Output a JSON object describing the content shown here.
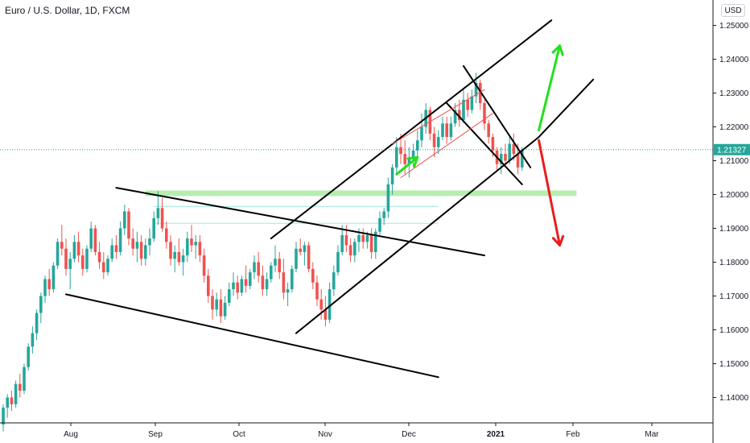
{
  "header": {
    "title": "Euro / U.S. Dollar, 1D, FXCM",
    "currency": "USD"
  },
  "price_tag": "1.21327",
  "colors": {
    "up": "#26a69a",
    "down": "#ef5350",
    "zone": "#a5e89a",
    "line": "#000000",
    "arrow_up": "#22e01a",
    "arrow_down": "#e81d1d",
    "guide": "#5ce0c8"
  },
  "chart_data": {
    "type": "candlestick",
    "x_ticks": [
      "Aug",
      "Sep",
      "Oct",
      "Nov",
      "Dec",
      "2021",
      "Feb",
      "Mar"
    ],
    "y_ticks": [
      "1.25000",
      "1.24000",
      "1.23000",
      "1.22000",
      "1.21000",
      "1.20000",
      "1.19000",
      "1.18000",
      "1.17000",
      "1.16000",
      "1.15000",
      "1.14000"
    ],
    "ylim": [
      1.1325,
      1.2575
    ],
    "last_price": 1.21327,
    "ohlc": [
      [
        1.132,
        1.138,
        1.13,
        1.137
      ],
      [
        1.137,
        1.141,
        1.134,
        1.14
      ],
      [
        1.14,
        1.142,
        1.136,
        1.138
      ],
      [
        1.138,
        1.145,
        1.137,
        1.144
      ],
      [
        1.144,
        1.147,
        1.14,
        1.142
      ],
      [
        1.142,
        1.15,
        1.141,
        1.149
      ],
      [
        1.149,
        1.156,
        1.148,
        1.155
      ],
      [
        1.155,
        1.161,
        1.153,
        1.159
      ],
      [
        1.159,
        1.166,
        1.157,
        1.165
      ],
      [
        1.165,
        1.171,
        1.162,
        1.17
      ],
      [
        1.17,
        1.176,
        1.168,
        1.175
      ],
      [
        1.175,
        1.178,
        1.17,
        1.172
      ],
      [
        1.172,
        1.18,
        1.171,
        1.179
      ],
      [
        1.179,
        1.187,
        1.178,
        1.186
      ],
      [
        1.186,
        1.191,
        1.182,
        1.184
      ],
      [
        1.184,
        1.187,
        1.176,
        1.178
      ],
      [
        1.178,
        1.183,
        1.172,
        1.181
      ],
      [
        1.181,
        1.188,
        1.18,
        1.186
      ],
      [
        1.186,
        1.189,
        1.18,
        1.182
      ],
      [
        1.182,
        1.184,
        1.176,
        1.178
      ],
      [
        1.178,
        1.185,
        1.177,
        1.184
      ],
      [
        1.184,
        1.192,
        1.183,
        1.19
      ],
      [
        1.19,
        1.191,
        1.182,
        1.183
      ],
      [
        1.183,
        1.186,
        1.178,
        1.18
      ],
      [
        1.18,
        1.183,
        1.175,
        1.177
      ],
      [
        1.177,
        1.182,
        1.176,
        1.181
      ],
      [
        1.181,
        1.187,
        1.18,
        1.185
      ],
      [
        1.185,
        1.188,
        1.181,
        1.183
      ],
      [
        1.183,
        1.192,
        1.182,
        1.19
      ],
      [
        1.19,
        1.197,
        1.188,
        1.195
      ],
      [
        1.195,
        1.196,
        1.185,
        1.187
      ],
      [
        1.187,
        1.19,
        1.182,
        1.184
      ],
      [
        1.184,
        1.189,
        1.18,
        1.186
      ],
      [
        1.186,
        1.188,
        1.179,
        1.181
      ],
      [
        1.181,
        1.187,
        1.179,
        1.185
      ],
      [
        1.185,
        1.19,
        1.182,
        1.187
      ],
      [
        1.187,
        1.195,
        1.186,
        1.193
      ],
      [
        1.193,
        1.201,
        1.191,
        1.196
      ],
      [
        1.196,
        1.199,
        1.189,
        1.19
      ],
      [
        1.19,
        1.192,
        1.184,
        1.186
      ],
      [
        1.186,
        1.188,
        1.179,
        1.181
      ],
      [
        1.181,
        1.185,
        1.177,
        1.183
      ],
      [
        1.183,
        1.187,
        1.179,
        1.18
      ],
      [
        1.18,
        1.184,
        1.176,
        1.182
      ],
      [
        1.182,
        1.189,
        1.18,
        1.187
      ],
      [
        1.187,
        1.191,
        1.183,
        1.185
      ],
      [
        1.185,
        1.188,
        1.181,
        1.186
      ],
      [
        1.186,
        1.188,
        1.18,
        1.182
      ],
      [
        1.182,
        1.184,
        1.174,
        1.176
      ],
      [
        1.176,
        1.178,
        1.168,
        1.17
      ],
      [
        1.17,
        1.172,
        1.163,
        1.166
      ],
      [
        1.166,
        1.171,
        1.164,
        1.169
      ],
      [
        1.169,
        1.172,
        1.162,
        1.164
      ],
      [
        1.164,
        1.17,
        1.163,
        1.168
      ],
      [
        1.168,
        1.174,
        1.167,
        1.172
      ],
      [
        1.172,
        1.177,
        1.17,
        1.174
      ],
      [
        1.174,
        1.176,
        1.169,
        1.171
      ],
      [
        1.171,
        1.176,
        1.17,
        1.175
      ],
      [
        1.175,
        1.179,
        1.171,
        1.173
      ],
      [
        1.173,
        1.178,
        1.172,
        1.177
      ],
      [
        1.177,
        1.182,
        1.175,
        1.18
      ],
      [
        1.18,
        1.183,
        1.174,
        1.176
      ],
      [
        1.176,
        1.179,
        1.17,
        1.172
      ],
      [
        1.172,
        1.177,
        1.17,
        1.175
      ],
      [
        1.175,
        1.18,
        1.174,
        1.179
      ],
      [
        1.179,
        1.185,
        1.177,
        1.181
      ],
      [
        1.181,
        1.183,
        1.175,
        1.177
      ],
      [
        1.177,
        1.181,
        1.169,
        1.171
      ],
      [
        1.171,
        1.174,
        1.167,
        1.172
      ],
      [
        1.172,
        1.179,
        1.171,
        1.178
      ],
      [
        1.178,
        1.186,
        1.177,
        1.184
      ],
      [
        1.184,
        1.187,
        1.182,
        1.183
      ],
      [
        1.183,
        1.186,
        1.179,
        1.185
      ],
      [
        1.185,
        1.186,
        1.177,
        1.178
      ],
      [
        1.178,
        1.18,
        1.172,
        1.174
      ],
      [
        1.174,
        1.176,
        1.167,
        1.169
      ],
      [
        1.169,
        1.172,
        1.163,
        1.166
      ],
      [
        1.166,
        1.17,
        1.161,
        1.163
      ],
      [
        1.163,
        1.174,
        1.162,
        1.172
      ],
      [
        1.172,
        1.179,
        1.17,
        1.177
      ],
      [
        1.177,
        1.185,
        1.176,
        1.183
      ],
      [
        1.183,
        1.191,
        1.182,
        1.188
      ],
      [
        1.188,
        1.191,
        1.183,
        1.185
      ],
      [
        1.185,
        1.187,
        1.18,
        1.182
      ],
      [
        1.182,
        1.187,
        1.18,
        1.186
      ],
      [
        1.186,
        1.19,
        1.183,
        1.188
      ],
      [
        1.188,
        1.19,
        1.184,
        1.186
      ],
      [
        1.186,
        1.189,
        1.184,
        1.188
      ],
      [
        1.188,
        1.19,
        1.181,
        1.183
      ],
      [
        1.183,
        1.19,
        1.181,
        1.189
      ],
      [
        1.189,
        1.195,
        1.188,
        1.193
      ],
      [
        1.193,
        1.196,
        1.191,
        1.195
      ],
      [
        1.195,
        1.205,
        1.193,
        1.203
      ],
      [
        1.203,
        1.209,
        1.2,
        1.208
      ],
      [
        1.208,
        1.217,
        1.206,
        1.214
      ],
      [
        1.214,
        1.218,
        1.209,
        1.212
      ],
      [
        1.212,
        1.216,
        1.206,
        1.209
      ],
      [
        1.209,
        1.214,
        1.205,
        1.211
      ],
      [
        1.211,
        1.215,
        1.208,
        1.213
      ],
      [
        1.213,
        1.219,
        1.211,
        1.216
      ],
      [
        1.216,
        1.224,
        1.214,
        1.22
      ],
      [
        1.22,
        1.227,
        1.218,
        1.225
      ],
      [
        1.225,
        1.226,
        1.216,
        1.218
      ],
      [
        1.218,
        1.22,
        1.211,
        1.214
      ],
      [
        1.214,
        1.219,
        1.212,
        1.217
      ],
      [
        1.217,
        1.223,
        1.216,
        1.221
      ],
      [
        1.221,
        1.223,
        1.215,
        1.217
      ],
      [
        1.217,
        1.223,
        1.216,
        1.221
      ],
      [
        1.221,
        1.227,
        1.22,
        1.225
      ],
      [
        1.225,
        1.228,
        1.22,
        1.222
      ],
      [
        1.222,
        1.231,
        1.221,
        1.228
      ],
      [
        1.228,
        1.23,
        1.223,
        1.225
      ],
      [
        1.225,
        1.231,
        1.224,
        1.229
      ],
      [
        1.229,
        1.236,
        1.227,
        1.233
      ],
      [
        1.233,
        1.234,
        1.225,
        1.227
      ],
      [
        1.227,
        1.228,
        1.219,
        1.221
      ],
      [
        1.221,
        1.222,
        1.215,
        1.217
      ],
      [
        1.217,
        1.218,
        1.211,
        1.213
      ],
      [
        1.213,
        1.214,
        1.207,
        1.209
      ],
      [
        1.209,
        1.214,
        1.206,
        1.212
      ],
      [
        1.212,
        1.215,
        1.208,
        1.21
      ],
      [
        1.21,
        1.217,
        1.209,
        1.215
      ],
      [
        1.215,
        1.218,
        1.21,
        1.212
      ],
      [
        1.212,
        1.215,
        1.206,
        1.208
      ],
      [
        1.208,
        1.214,
        1.207,
        1.2133
      ]
    ],
    "zone": {
      "low": 1.1995,
      "high": 1.2005
    },
    "guides": [
      1.1965,
      1.1915
    ],
    "annotations": [
      {
        "kind": "trendline",
        "from": [
          15,
          1.1705
        ],
        "to": [
          104,
          1.146
        ]
      },
      {
        "kind": "trendline",
        "from": [
          27,
          1.202
        ],
        "to": [
          115,
          1.182
        ]
      },
      {
        "kind": "trendline",
        "from": [
          70,
          1.159
        ],
        "to": [
          128,
          1.217
        ]
      },
      {
        "kind": "trendline",
        "from": [
          64,
          1.187
        ],
        "to": [
          131,
          1.2515
        ]
      },
      {
        "kind": "trendline",
        "from": [
          106,
          1.227
        ],
        "to": [
          124,
          1.203
        ]
      },
      {
        "kind": "trendline",
        "from": [
          110,
          1.238
        ],
        "to": [
          126,
          1.208
        ]
      },
      {
        "kind": "trendline",
        "from": [
          128,
          1.217
        ],
        "to": [
          141,
          1.234
        ]
      },
      {
        "kind": "channel-red",
        "from": [
          93,
          1.215
        ],
        "to": [
          115,
          1.231
        ]
      },
      {
        "kind": "channel-red",
        "from": [
          95,
          1.205
        ],
        "to": [
          117,
          1.224
        ]
      },
      {
        "kind": "arrow-up",
        "from": [
          94,
          1.206
        ],
        "to": [
          99,
          1.211
        ]
      },
      {
        "kind": "arrow-up",
        "from": [
          128,
          1.219
        ],
        "to": [
          133,
          1.244
        ]
      },
      {
        "kind": "arrow-down",
        "from": [
          128,
          1.216
        ],
        "to": [
          133,
          1.185
        ]
      }
    ]
  }
}
